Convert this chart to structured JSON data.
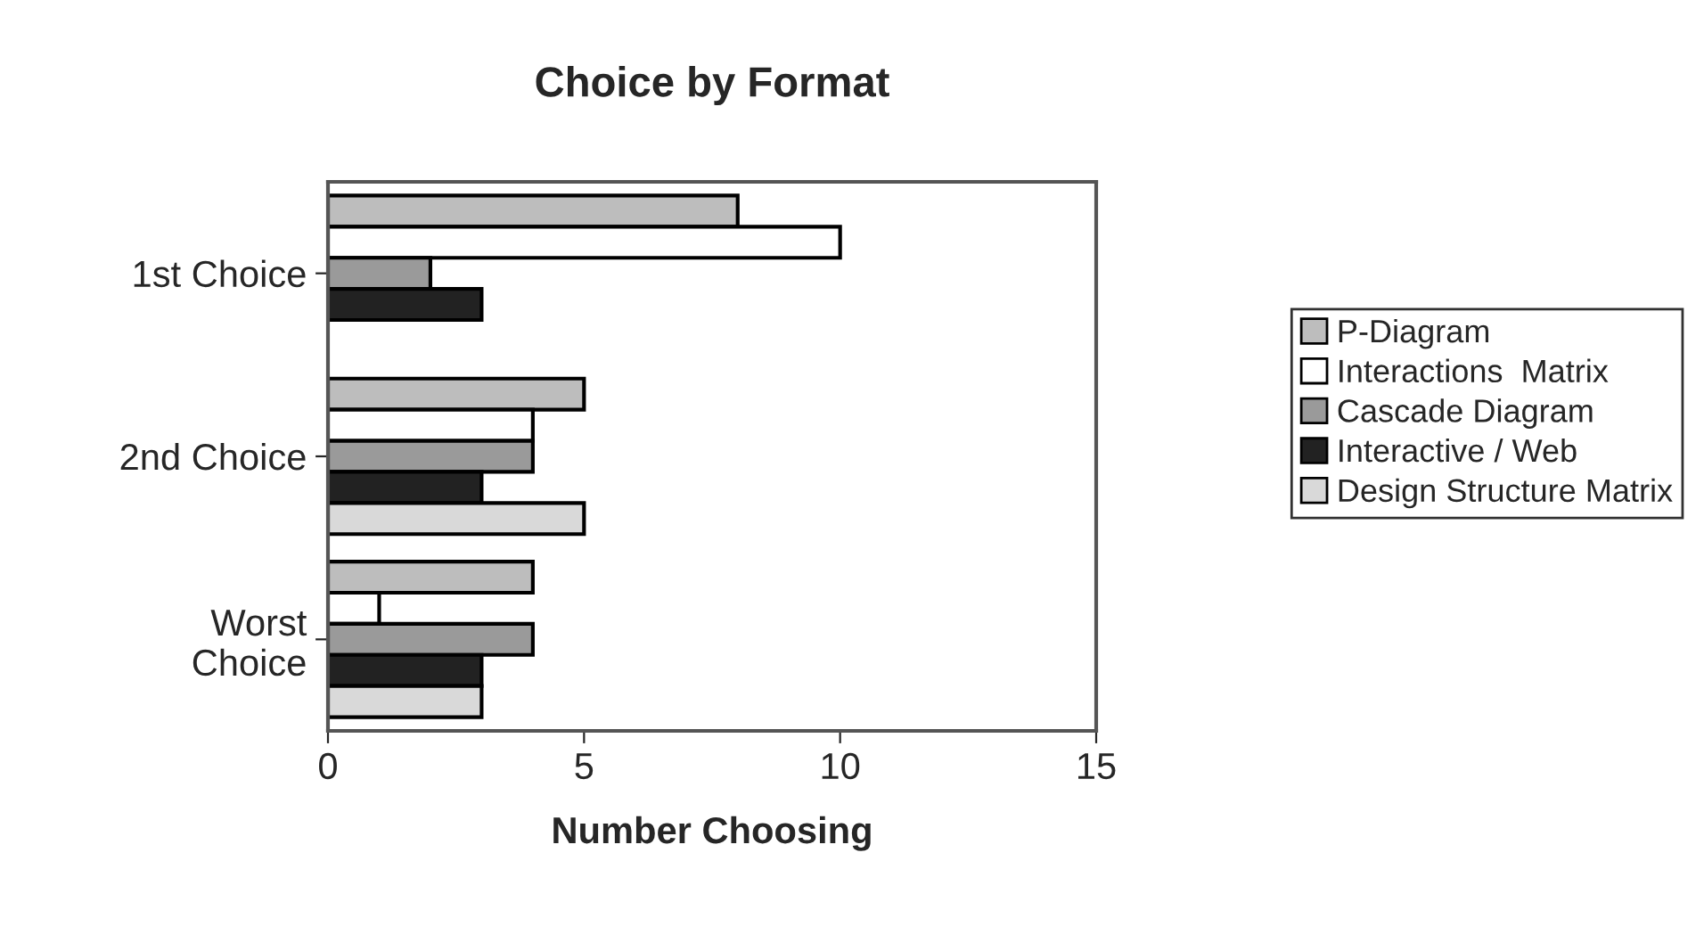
{
  "chart_data": {
    "type": "bar",
    "orientation": "horizontal",
    "title": "Choice by Format",
    "xlabel": "Number Choosing",
    "categories": [
      "1st Choice",
      "2nd Choice",
      "Worst\nChoice"
    ],
    "series": [
      {
        "name": "P-Diagram",
        "color": "#bdbdbd",
        "values": [
          8,
          5,
          4
        ]
      },
      {
        "name": "Interactions  Matrix",
        "color": "#ffffff",
        "values": [
          10,
          4,
          1
        ]
      },
      {
        "name": "Cascade Diagram",
        "color": "#9a9a9a",
        "values": [
          2,
          4,
          4
        ]
      },
      {
        "name": "Interactive / Web",
        "color": "#222222",
        "values": [
          3,
          3,
          3
        ]
      },
      {
        "name": "Design Structure Matrix",
        "color": "#d9d9d9",
        "values": [
          null,
          5,
          3
        ]
      }
    ],
    "xlim": [
      0,
      15
    ],
    "xticks": [
      0,
      5,
      10,
      15
    ],
    "grid": false,
    "legend": "right"
  }
}
